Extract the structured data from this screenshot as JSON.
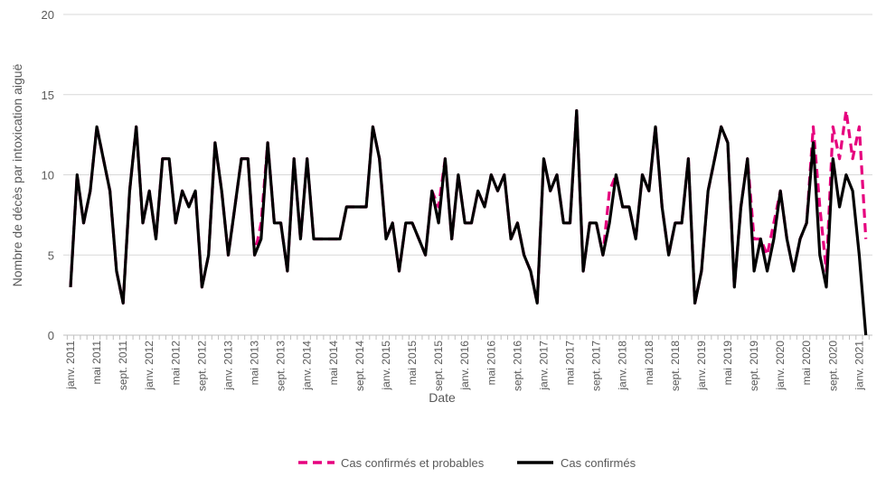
{
  "chart_data": {
    "type": "line",
    "title": "",
    "xlabel": "Date",
    "ylabel": "Nombre de décès par intoxication aiguë",
    "ylim": [
      0,
      20
    ],
    "yticks": [
      0,
      5,
      10,
      15,
      20
    ],
    "grid": true,
    "legend_position": "bottom",
    "x_start": "janv. 2011",
    "x_end": "févr. 2021",
    "x_frequency": "monthly",
    "xtick_labels": [
      "janv. 2011",
      "mai 2011",
      "sept. 2011",
      "janv. 2012",
      "mai 2012",
      "sept. 2012",
      "janv. 2013",
      "mai 2013",
      "sept. 2013",
      "janv. 2014",
      "mai 2014",
      "sept. 2014",
      "janv. 2015",
      "mai 2015",
      "sept. 2015",
      "janv. 2016",
      "mai 2016",
      "sept. 2016",
      "janv. 2017",
      "mai 2017",
      "sept. 2017",
      "janv. 2018",
      "mai 2018",
      "sept. 2018",
      "janv. 2019",
      "mai 2019",
      "sept. 2019",
      "janv. 2020",
      "mai 2020",
      "sept. 2020",
      "janv. 2021"
    ],
    "series": [
      {
        "name": "Cas confirmés et probables",
        "color": "#e6007e",
        "style": "dashed",
        "values": [
          3,
          10,
          7,
          9,
          13,
          11,
          9,
          4,
          2,
          9,
          13,
          7,
          9,
          6,
          11,
          11,
          7,
          9,
          8,
          9,
          3,
          5,
          12,
          9,
          5,
          8,
          11,
          11,
          5,
          7,
          12,
          7,
          7,
          4,
          11,
          6,
          11,
          6,
          6,
          6,
          6,
          6,
          8,
          8,
          8,
          8,
          13,
          11,
          6,
          7,
          4,
          7,
          7,
          6,
          5,
          9,
          8,
          11,
          6,
          10,
          7,
          7,
          9,
          8,
          10,
          9,
          10,
          6,
          7,
          5,
          4,
          2,
          11,
          9,
          10,
          7,
          7,
          14,
          4,
          7,
          7,
          5,
          9,
          10,
          8,
          8,
          6,
          10,
          9,
          13,
          8,
          5,
          7,
          7,
          11,
          2,
          4,
          9,
          11,
          13,
          12,
          3,
          8,
          11,
          6,
          6,
          5,
          7,
          9,
          6,
          4,
          6,
          7,
          13,
          8,
          4,
          13,
          11,
          14,
          11,
          13,
          6
        ]
      },
      {
        "name": "Cas confirmés",
        "color": "#000000",
        "style": "solid",
        "values": [
          3,
          10,
          7,
          9,
          13,
          11,
          9,
          4,
          2,
          9,
          13,
          7,
          9,
          6,
          11,
          11,
          7,
          9,
          8,
          9,
          3,
          5,
          12,
          9,
          5,
          8,
          11,
          11,
          5,
          6,
          12,
          7,
          7,
          4,
          11,
          6,
          11,
          6,
          6,
          6,
          6,
          6,
          8,
          8,
          8,
          8,
          13,
          11,
          6,
          7,
          4,
          7,
          7,
          6,
          5,
          9,
          7,
          11,
          6,
          10,
          7,
          7,
          9,
          8,
          10,
          9,
          10,
          6,
          7,
          5,
          4,
          2,
          11,
          9,
          10,
          7,
          7,
          14,
          4,
          7,
          7,
          5,
          7,
          10,
          8,
          8,
          6,
          10,
          9,
          13,
          8,
          5,
          7,
          7,
          11,
          2,
          4,
          9,
          11,
          13,
          12,
          3,
          8,
          11,
          4,
          6,
          4,
          6,
          9,
          6,
          4,
          6,
          7,
          12,
          5,
          3,
          11,
          8,
          10,
          9,
          5,
          0
        ]
      }
    ]
  }
}
